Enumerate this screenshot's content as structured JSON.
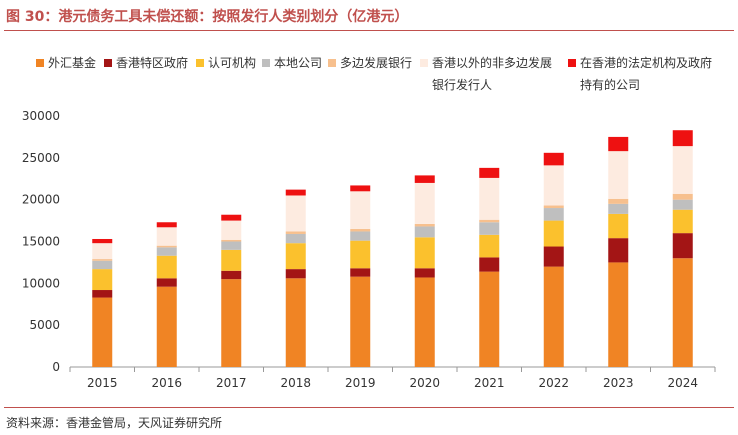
{
  "header": {
    "title": "图 30：港元债务工具未偿还额：按照发行人类别划分（亿港元）"
  },
  "footer": {
    "source": "资料来源：香港金管局，天风证券研究所"
  },
  "legend": [
    {
      "line1": "外汇基金",
      "line2": ""
    },
    {
      "line1": "香港特区政府",
      "line2": ""
    },
    {
      "line1": "认可机构",
      "line2": ""
    },
    {
      "line1": "本地公司",
      "line2": ""
    },
    {
      "line1": "多边发展银行",
      "line2": ""
    },
    {
      "line1": "香港以外的非多边发展",
      "line2": "银行发行人"
    },
    {
      "line1": "在香港的法定机构及政府",
      "line2": "持有的公司"
    }
  ],
  "chart_data": {
    "type": "bar",
    "stacked": true,
    "categories": [
      "2015",
      "2016",
      "2017",
      "2018",
      "2019",
      "2020",
      "2021",
      "2022",
      "2023",
      "2024"
    ],
    "ylim": [
      0,
      30000
    ],
    "yticks": [
      0,
      5000,
      10000,
      15000,
      20000,
      25000,
      30000
    ],
    "ytick_labels": [
      "0",
      "5000",
      "10000",
      "15000",
      "20000",
      "25000",
      "30000"
    ],
    "series": [
      {
        "name": "外汇基金",
        "color": "#f08424",
        "values": [
          8300,
          9600,
          10500,
          10600,
          10800,
          10700,
          11400,
          12000,
          12500,
          13000
        ]
      },
      {
        "name": "香港特区政府",
        "color": "#a31515",
        "values": [
          900,
          1000,
          1000,
          1100,
          1000,
          1100,
          1700,
          2400,
          2900,
          3000
        ]
      },
      {
        "name": "认可机构",
        "color": "#fbc12d",
        "values": [
          2500,
          2700,
          2500,
          3100,
          3300,
          3700,
          2700,
          3100,
          2900,
          2800
        ]
      },
      {
        "name": "本地公司",
        "color": "#bfbfbf",
        "values": [
          1000,
          1000,
          1000,
          1100,
          1100,
          1300,
          1500,
          1500,
          1200,
          1200
        ]
      },
      {
        "name": "多边发展银行",
        "color": "#f7c08e",
        "values": [
          200,
          200,
          200,
          300,
          300,
          300,
          300,
          300,
          600,
          700
        ]
      },
      {
        "name": "香港以外的非多边发展银行发行人",
        "color": "#fdebe0",
        "values": [
          1900,
          2200,
          2300,
          4300,
          4500,
          4900,
          5000,
          4800,
          5700,
          5700
        ]
      },
      {
        "name": "在香港的法定机构及政府持有的公司",
        "color": "#ee1111",
        "values": [
          500,
          600,
          700,
          700,
          700,
          900,
          1200,
          1500,
          1700,
          1900
        ]
      }
    ]
  }
}
